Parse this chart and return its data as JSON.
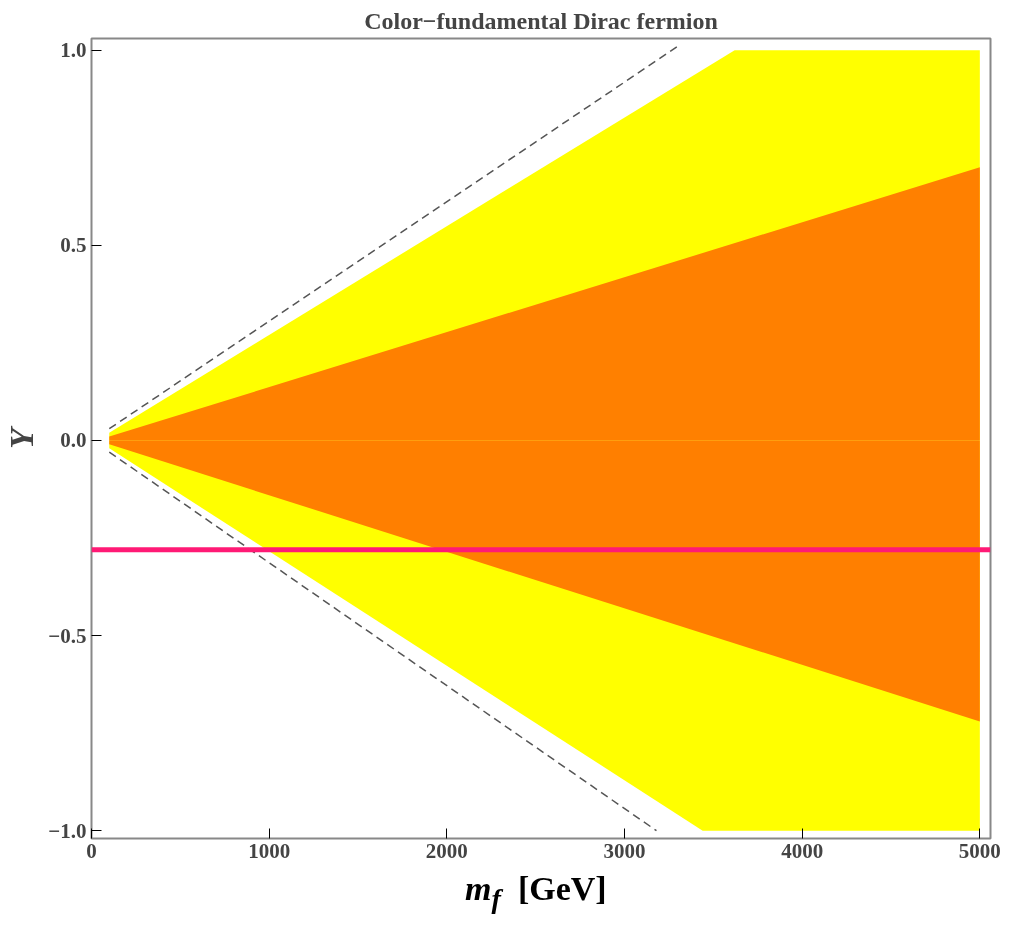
{
  "chart_data": {
    "type": "area",
    "title": "Color−fundamental Dirac fermion",
    "xlabel": "m$_{f}$  [GeV]",
    "ylabel": "Y",
    "xlim": [
      0,
      5060
    ],
    "ylim": [
      -1.02,
      1.03
    ],
    "xticks": [
      0,
      1000,
      2000,
      3000,
      4000,
      5000
    ],
    "yticks": [
      {
        "value": -1.0,
        "label": "−1.0"
      },
      {
        "value": -0.5,
        "label": "−0.5"
      },
      {
        "value": 0.0,
        "label": "0.0"
      },
      {
        "value": 0.5,
        "label": "0.5"
      },
      {
        "value": 1.0,
        "label": "1.0"
      }
    ],
    "grid": false,
    "series": [
      {
        "color": "#ffff00",
        "x": [
          100,
          3620,
          5000
        ],
        "values": [
          0.02,
          1.0,
          1.0
        ]
      },
      {
        "color": "#ffff00",
        "x": [
          100,
          3440,
          5000
        ],
        "values": [
          -0.02,
          -1.0,
          -1.0
        ]
      },
      {
        "color": "#ff8000",
        "x": [
          100,
          5000
        ],
        "values": [
          0.01,
          0.7
        ]
      },
      {
        "color": "#ff7f00",
        "x": [
          100,
          5000
        ],
        "values": [
          -0.01,
          -0.72
        ]
      },
      {
        "type": "line",
        "color": "#555555",
        "line_style": "dashed",
        "x": [
          100,
          3300
        ],
        "values": [
          0.03,
          1.01
        ]
      },
      {
        "type": "line",
        "color": "#555555",
        "line_style": "dashed",
        "x": [
          100,
          3180
        ],
        "values": [
          -0.03,
          -1.0
        ]
      }
    ],
    "ref_lines": [
      {
        "axis": "y",
        "value": -0.28,
        "color": "#ff1a75"
      }
    ]
  }
}
